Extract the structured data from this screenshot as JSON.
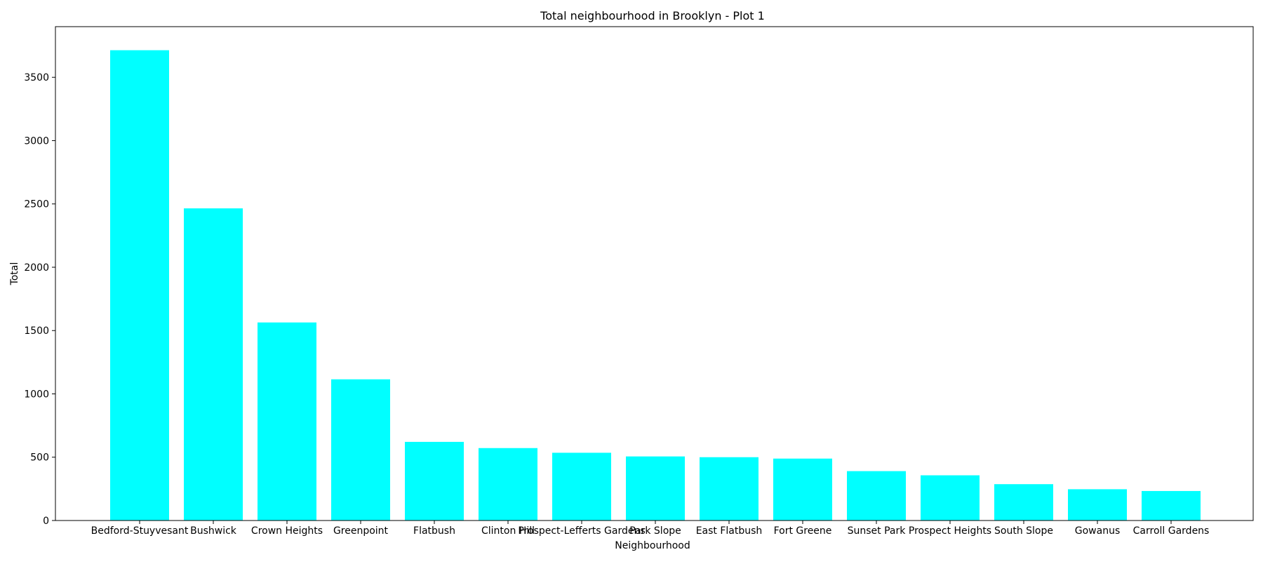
{
  "chart_data": {
    "type": "bar",
    "title": "Total neighbourhood in Brooklyn - Plot 1",
    "xlabel": "Neighbourhood",
    "ylabel": "Total",
    "categories": [
      "Bedford-Stuyvesant",
      "Bushwick",
      "Crown Heights",
      "Greenpoint",
      "Flatbush",
      "Clinton Hill",
      "Prospect-Lefferts Gardens",
      "Park Slope",
      "East Flatbush",
      "Fort Greene",
      "Sunset Park",
      "Prospect Heights",
      "South Slope",
      "Gowanus",
      "Carroll Gardens"
    ],
    "values": [
      3714,
      2465,
      1564,
      1115,
      621,
      572,
      535,
      506,
      500,
      489,
      390,
      357,
      287,
      247,
      233
    ],
    "ylim": [
      0,
      3900
    ],
    "yticks": [
      0,
      500,
      1000,
      1500,
      2000,
      2500,
      3000,
      3500
    ],
    "grid": false,
    "legend": "none",
    "bar_color": "#00ffff"
  }
}
